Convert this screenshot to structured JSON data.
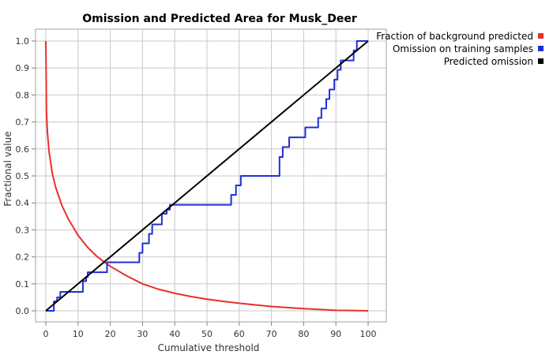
{
  "chart_data": {
    "type": "line",
    "title": "Omission and Predicted Area for Musk_Deer",
    "xlabel": "Cumulative threshold",
    "ylabel": "Fractional value",
    "xlim": [
      0,
      100
    ],
    "ylim": [
      0,
      1.0
    ],
    "xticks": [
      "0",
      "10",
      "20",
      "30",
      "40",
      "50",
      "60",
      "70",
      "80",
      "90",
      "100"
    ],
    "yticks": [
      "0.0",
      "0.1",
      "0.2",
      "0.3",
      "0.4",
      "0.5",
      "0.6",
      "0.7",
      "0.8",
      "0.9",
      "1.0"
    ],
    "grid": true,
    "legend_position": "top-right",
    "series": [
      {
        "name": "Fraction of background predicted",
        "color": "#e8302c",
        "x": [
          0,
          0.2,
          0.5,
          1,
          2,
          3,
          5,
          7,
          10,
          13,
          16,
          20,
          25,
          30,
          35,
          40,
          45,
          50,
          55,
          60,
          65,
          70,
          75,
          80,
          85,
          90,
          95,
          100
        ],
        "y": [
          1.0,
          0.74,
          0.66,
          0.59,
          0.51,
          0.46,
          0.39,
          0.34,
          0.28,
          0.235,
          0.2,
          0.165,
          0.13,
          0.1,
          0.08,
          0.065,
          0.053,
          0.043,
          0.035,
          0.028,
          0.022,
          0.016,
          0.012,
          0.008,
          0.005,
          0.002,
          0.001,
          0.0
        ]
      },
      {
        "name": "Omission on training samples",
        "color": "#1f2fd6",
        "x": [
          0,
          2.5,
          2.5,
          3.5,
          3.5,
          4.5,
          4.5,
          11.5,
          11.5,
          12.5,
          12.5,
          13,
          13,
          19,
          19,
          29,
          29,
          30,
          30,
          32,
          32,
          33,
          33,
          36,
          36,
          37.5,
          37.5,
          38.5,
          38.5,
          57.5,
          57.5,
          59,
          59,
          60.5,
          60.5,
          72.5,
          72.5,
          73.5,
          73.5,
          75.5,
          75.5,
          80.5,
          80.5,
          84.5,
          84.5,
          85.5,
          85.5,
          87,
          87,
          88,
          88,
          89.5,
          89.5,
          90.5,
          90.5,
          91.5,
          91.5,
          95.5,
          95.5,
          96.5,
          96.5,
          100
        ],
        "y": [
          0.0,
          0.0,
          0.035,
          0.035,
          0.05,
          0.05,
          0.07,
          0.07,
          0.11,
          0.11,
          0.125,
          0.125,
          0.143,
          0.143,
          0.18,
          0.18,
          0.215,
          0.215,
          0.25,
          0.25,
          0.285,
          0.285,
          0.32,
          0.32,
          0.36,
          0.36,
          0.375,
          0.375,
          0.393,
          0.393,
          0.43,
          0.43,
          0.465,
          0.465,
          0.5,
          0.5,
          0.57,
          0.57,
          0.607,
          0.607,
          0.643,
          0.643,
          0.68,
          0.68,
          0.715,
          0.715,
          0.75,
          0.75,
          0.785,
          0.785,
          0.82,
          0.82,
          0.857,
          0.857,
          0.893,
          0.893,
          0.928,
          0.928,
          0.965,
          0.965,
          1.0,
          1.0
        ]
      },
      {
        "name": "Predicted omission",
        "color": "#000000",
        "x": [
          0,
          100
        ],
        "y": [
          0,
          1.0
        ]
      }
    ]
  }
}
